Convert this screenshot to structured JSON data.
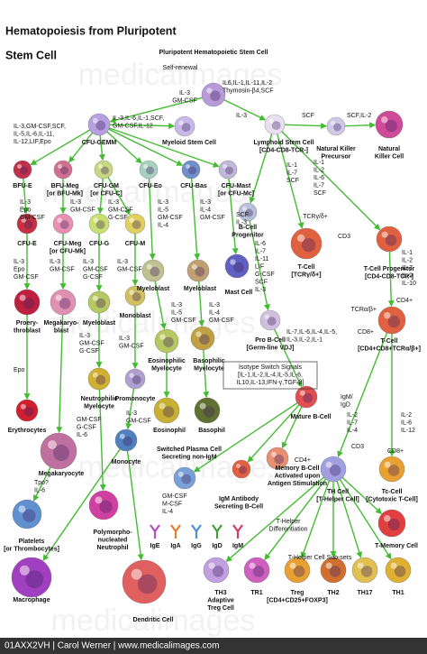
{
  "header": {
    "title": [
      "Hematopoiesis from Pluripotent",
      "Stem Cell"
    ]
  },
  "watermark": "medicalimages",
  "nodes": [
    {
      "label": [
        "Pluripotent Hematopoietic Stem Cell"
      ]
    },
    {
      "label": [
        "Myeloid Stem Cell"
      ]
    },
    {
      "label": [
        "CFU-GEMM"
      ]
    },
    {
      "label": [
        "Lymphoid Stem Cell",
        "[CD4-CD8-TCR-]"
      ]
    },
    {
      "label": [
        "Natural Killer",
        "Precursor"
      ]
    },
    {
      "label": [
        "Natural",
        "Killer Cell"
      ]
    },
    {
      "label": [
        "BFU-E"
      ]
    },
    {
      "label": [
        "BFU-Meg",
        "[or BFU-Mk]"
      ]
    },
    {
      "label": [
        "CFU-GM",
        "[or CFU-C]"
      ]
    },
    {
      "label": [
        "CFU-Eo"
      ]
    },
    {
      "label": [
        "CFU-Bas"
      ]
    },
    {
      "label": [
        "CFU-Mast",
        "[or CFU-Mc]"
      ]
    },
    {
      "label": [
        "CFU-E"
      ]
    },
    {
      "label": [
        "CFU-Meg",
        "[or CFU-Mk]"
      ]
    },
    {
      "label": [
        "CFU-G"
      ]
    },
    {
      "label": [
        "CFU-M"
      ]
    },
    {
      "label": [
        "B-Cell",
        "Progenitor"
      ]
    },
    {
      "label": [
        "T-Cell",
        "[TCRγ/δ+]"
      ]
    },
    {
      "label": [
        "T-Cell Progenitor",
        "[CD4-CD8-TCR-]"
      ]
    },
    {
      "label": [
        "Proery-",
        "throblast"
      ]
    },
    {
      "label": [
        "Megakaryo-",
        "blast"
      ]
    },
    {
      "label": [
        "Myeloblast"
      ]
    },
    {
      "label": [
        "Monoblast"
      ]
    },
    {
      "label": [
        "Myeloblast"
      ]
    },
    {
      "label": [
        "Myeloblast"
      ]
    },
    {
      "label": [
        "Mast Cell"
      ]
    },
    {
      "label": [
        "Pro B-Cell",
        "[Germ-line VDJ]"
      ]
    },
    {
      "label": [
        "T-Cell",
        "[CD4+CD8+TCRα/β+]"
      ]
    },
    {
      "label": [
        "Eosinophilic",
        "Myelocyte"
      ]
    },
    {
      "label": [
        "Basophilic",
        "Myelocyte"
      ]
    },
    {
      "label": [
        "Promonocyte"
      ]
    },
    {
      "label": [
        "Neutrophilic",
        "Myelocyte"
      ]
    },
    {
      "label": [
        "Eosinophil"
      ]
    },
    {
      "label": [
        "Basophil"
      ]
    },
    {
      "label": [
        "Erythrocytes"
      ]
    },
    {
      "label": [
        "Mature B-Cell"
      ]
    },
    {
      "label": [
        "Megakaryocyte"
      ]
    },
    {
      "label": [
        "Monocyte"
      ]
    },
    {
      "label": [
        "Switched Plasma Cell",
        "Secreting non-IgM"
      ]
    },
    {
      "label": [
        "Memory B-Cell",
        "Activated upon",
        "Antigen Stimulation"
      ]
    },
    {
      "label": [
        "TH Cell",
        "[T-Helper Cell]"
      ]
    },
    {
      "label": [
        "Tc-Cell",
        "[Cytotoxic T-Cell]"
      ]
    },
    {
      "label": [
        "Platelets",
        "[or Thrombocytes]"
      ]
    },
    {
      "label": [
        "Polymorpho-",
        "nucleated",
        "Neutrophil"
      ]
    },
    {
      "label": [
        "IgM Antibody",
        "Secreting B-Cell"
      ]
    },
    {
      "label": [
        "T-Memory Cell"
      ]
    },
    {
      "label": [
        "Macrophage"
      ]
    },
    {
      "label": [
        "Dendritic Cell"
      ]
    },
    {
      "label": [
        "TH3",
        "Adaptive",
        "Treg Cell"
      ]
    },
    {
      "label": [
        "TR1"
      ]
    },
    {
      "label": [
        "Treg",
        "[CD4+CD25+FOXP3]"
      ]
    },
    {
      "label": [
        "TH2"
      ]
    },
    {
      "label": [
        "TH17"
      ]
    },
    {
      "label": [
        "TH1"
      ]
    }
  ],
  "cytokines": [
    [
      "IL6,IL-1,IL-11,IL-2",
      "Thymosin-β4,SCF"
    ],
    [
      "IL-3",
      "GM-CSF"
    ],
    [
      "IL-3,IL-6,IL-1,SCF,",
      "GM-CSF,IL-12"
    ],
    [
      "IL-3"
    ],
    [
      "SCF"
    ],
    [
      "SCF,IL-2"
    ],
    [
      "IL-3,GM-CSF,SCF,",
      "IL-5,IL-6,IL-11,",
      "IL-12,LIF,Epo"
    ],
    [
      "IL-1",
      "IL-2",
      "IL-6",
      "IL-7",
      "SCF"
    ],
    [
      "IL-1",
      "IL-7",
      "SCF"
    ],
    [
      "IL-3",
      "Epo",
      "GM-CSF"
    ],
    [
      "IL-3",
      "GM-CSF"
    ],
    [
      "IL-3",
      "GM-CSF",
      "G-CSF"
    ],
    [
      "IL-3",
      "IL-5",
      "GM-CSF",
      "IL-4"
    ],
    [
      "IL-3",
      "IL-4",
      "GM-CSF"
    ],
    [
      "SCF",
      "IL-3"
    ],
    [
      "IL-6",
      "IL-7",
      "IL-11",
      "LIF",
      "G-CSF",
      "SCF",
      "IL-3"
    ],
    [
      "IL-3",
      "Epo",
      "GM-CSF"
    ],
    [
      "IL-3",
      "GM-CSF"
    ],
    [
      "IL-3",
      "GM-CSF",
      "G-CSF"
    ],
    [
      "IL-3",
      "GM-CSF"
    ],
    [
      "IL-3",
      "IL-5",
      "GM-CSF"
    ],
    [
      "IL-3",
      "IL-4",
      "GM-CSF"
    ],
    [
      "IL-7,IL-6,IL-4,IL-5,",
      "IL-3,IL-2,IL-1"
    ],
    [
      "IL-1",
      "IL-2",
      "IL-7",
      "IL-9",
      "IL-10"
    ],
    [
      "Epo"
    ],
    [
      "IL-3",
      "GM-CSF",
      "G-CSF"
    ],
    [
      "IL-3",
      "GM-CSF"
    ],
    [
      "GM-CSF",
      "G-CSF",
      "IL-6"
    ],
    [
      "IL-3",
      "GM-CSF"
    ],
    [
      "Tpo?",
      "IL-6"
    ],
    [
      "GM-CSF",
      "M-CSF",
      "IL-4"
    ],
    [
      "IL-2",
      "IL-7",
      "IL-4"
    ],
    [
      "IL-2",
      "IL-6",
      "IL-12"
    ]
  ],
  "notes": [
    [
      "Self-renewal"
    ],
    [
      "Isotype Switch Signals",
      "[IL-1,IL-2,IL-4,IL-5,IL-6,",
      "IL10,IL-13,IFN-γ,TGF-β]"
    ],
    [
      "TCRγ/δ+"
    ],
    [
      "CD3"
    ],
    [
      "TCRα/β+"
    ],
    [
      "CD4+"
    ],
    [
      "CD8+"
    ],
    [
      "IgM/",
      "IgD"
    ],
    [
      "CD4+"
    ],
    [
      "CD3"
    ],
    [
      "CD8+"
    ],
    [
      "T-Helper",
      "Differentiation"
    ],
    [
      "T-Helper Cell Sub-sets"
    ]
  ],
  "antibodies": [
    "IgE",
    "IgA",
    "IgG",
    "IgD",
    "IgM"
  ],
  "footer": "01AXX2VH | Carol Werner | www.medicalimages.com"
}
